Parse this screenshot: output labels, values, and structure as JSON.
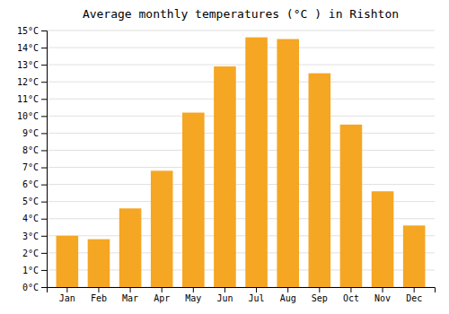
{
  "chart_data": {
    "type": "bar",
    "title": "Average monthly temperatures (°C ) in Rishton",
    "categories": [
      "Jan",
      "Feb",
      "Mar",
      "Apr",
      "May",
      "Jun",
      "Jul",
      "Aug",
      "Sep",
      "Oct",
      "Nov",
      "Dec"
    ],
    "values": [
      3.0,
      2.8,
      4.6,
      6.8,
      10.2,
      12.9,
      14.6,
      14.5,
      12.5,
      9.5,
      5.6,
      3.6
    ],
    "color": "#F5A623",
    "ylim": [
      0,
      15
    ],
    "yticks": [
      {
        "value": 0,
        "label": "0°C"
      },
      {
        "value": 1,
        "label": "1°C"
      },
      {
        "value": 2,
        "label": "2°C"
      },
      {
        "value": 3,
        "label": "3°C"
      },
      {
        "value": 4,
        "label": "4°C"
      },
      {
        "value": 5,
        "label": "5°C"
      },
      {
        "value": 6,
        "label": "6°C"
      },
      {
        "value": 7,
        "label": "7°C"
      },
      {
        "value": 8,
        "label": "8°C"
      },
      {
        "value": 9,
        "label": "9°C"
      },
      {
        "value": 10,
        "label": "10°C"
      },
      {
        "value": 11,
        "label": "11°C"
      },
      {
        "value": 12,
        "label": "12°C"
      },
      {
        "value": 13,
        "label": "13°C"
      },
      {
        "value": 14,
        "label": "14°C"
      },
      {
        "value": 15,
        "label": "15°C"
      }
    ],
    "grid": true
  }
}
